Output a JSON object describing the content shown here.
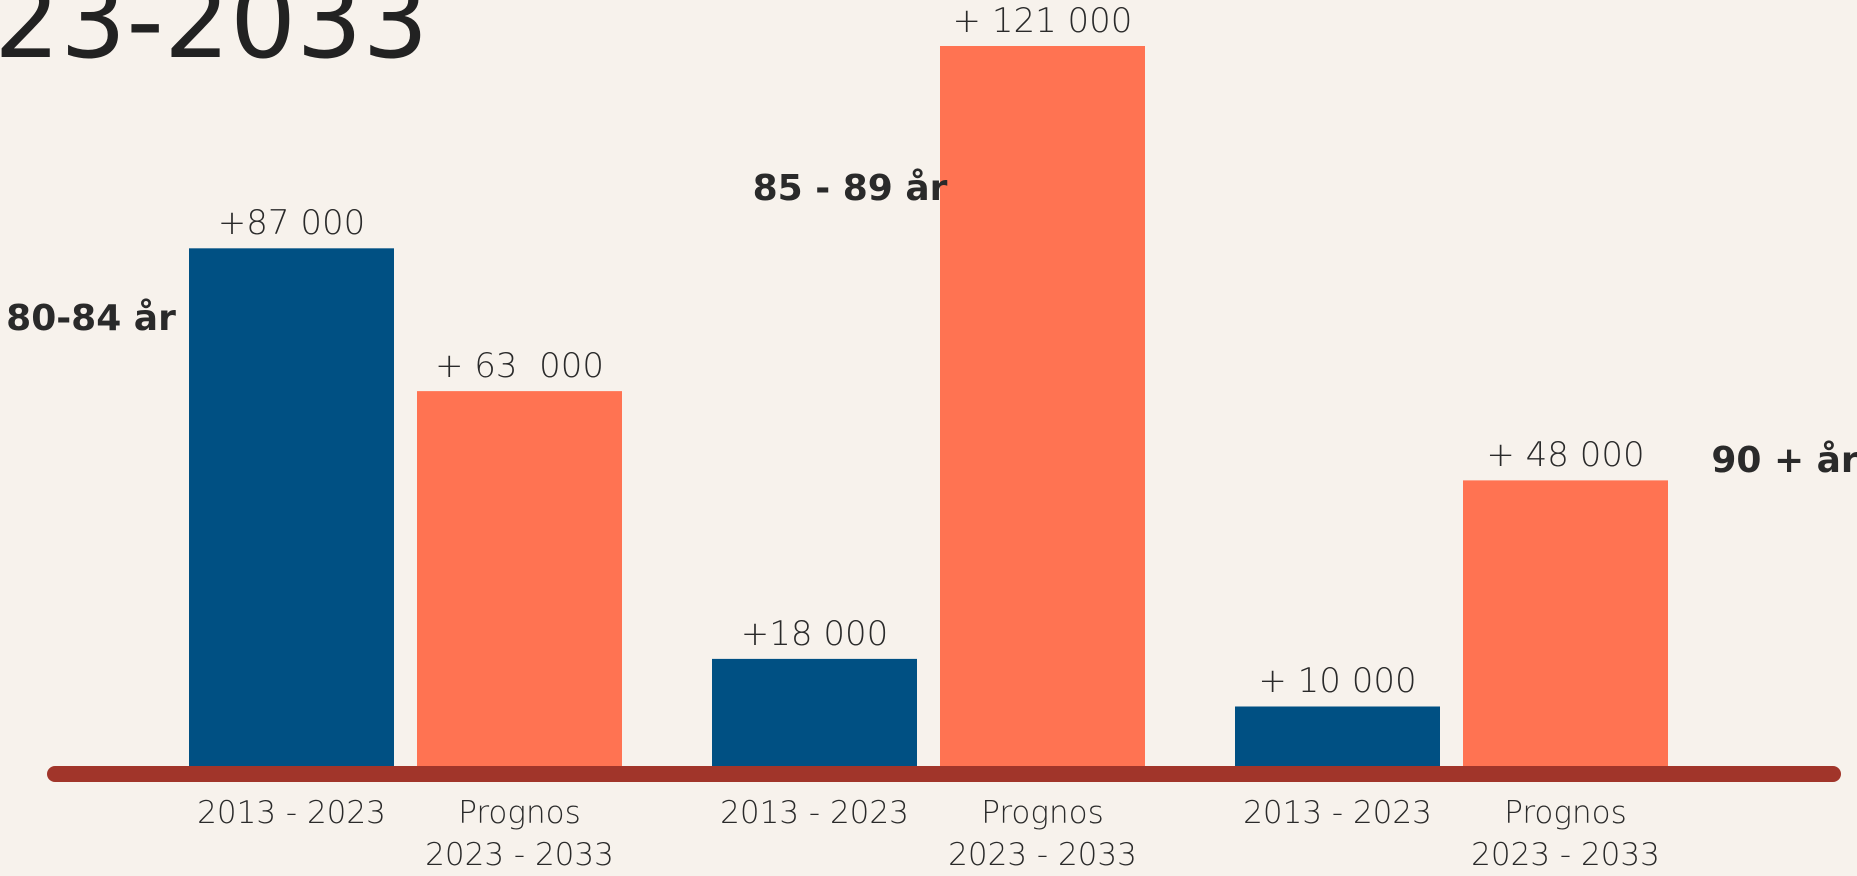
{
  "chart_data": {
    "type": "bar",
    "title": "23-2033",
    "categories": [
      "80-84 år",
      "85 - 89 år",
      "90 + år"
    ],
    "series": [
      {
        "name": "2013 - 2023",
        "color": "#005083",
        "values": [
          87000,
          18000,
          10000
        ],
        "value_labels": [
          "+87 000",
          "+18 000",
          "+ 10 000"
        ]
      },
      {
        "name": "Prognos\n2023 - 2033",
        "color": "#ff7352",
        "values": [
          63000,
          121000,
          48000
        ],
        "value_labels": [
          "+ 63  000",
          "+ 121 000",
          "+ 48 000"
        ]
      }
    ],
    "ylim": [
      0,
      121000
    ]
  }
}
